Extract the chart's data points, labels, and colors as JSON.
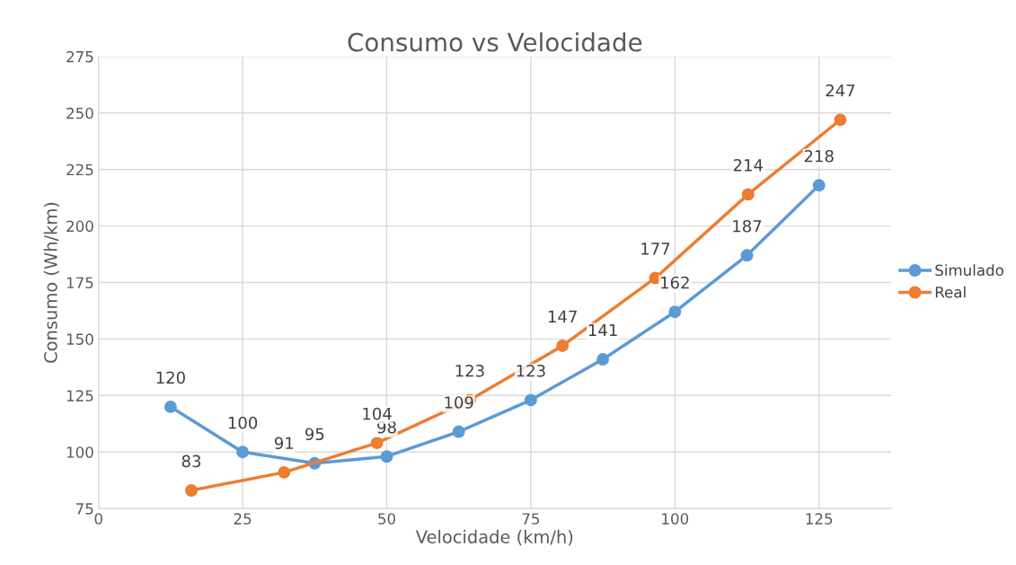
{
  "chart_data": {
    "type": "line",
    "title": "Consumo vs Velocidade",
    "xlabel": "Velocidade (km/h)",
    "ylabel": "Consumo (Wh/km)",
    "xlim": [
      0,
      137.5
    ],
    "xticks": [
      0,
      25,
      50,
      75,
      100,
      125
    ],
    "ylim": [
      75,
      275
    ],
    "yticks": [
      75,
      100,
      125,
      150,
      175,
      200,
      225,
      250,
      275
    ],
    "grid": true,
    "legend": "right",
    "marker": "circle",
    "line_style": "solid",
    "data_labels": true,
    "series": [
      {
        "name": "Simulado",
        "color": "#5b9bd5",
        "x": [
          12.5,
          25,
          37.5,
          50,
          62.5,
          75,
          87.5,
          100,
          112.5,
          125
        ],
        "values": [
          120,
          100,
          95,
          98,
          109,
          123,
          141,
          162,
          187,
          218
        ]
      },
      {
        "name": "Real",
        "color": "#ed7d31",
        "x": [
          16.1,
          32.2,
          48.3,
          64.4,
          80.5,
          96.6,
          112.7,
          128.7
        ],
        "values": [
          83,
          91,
          104,
          123,
          147,
          177,
          214,
          247
        ]
      }
    ]
  }
}
